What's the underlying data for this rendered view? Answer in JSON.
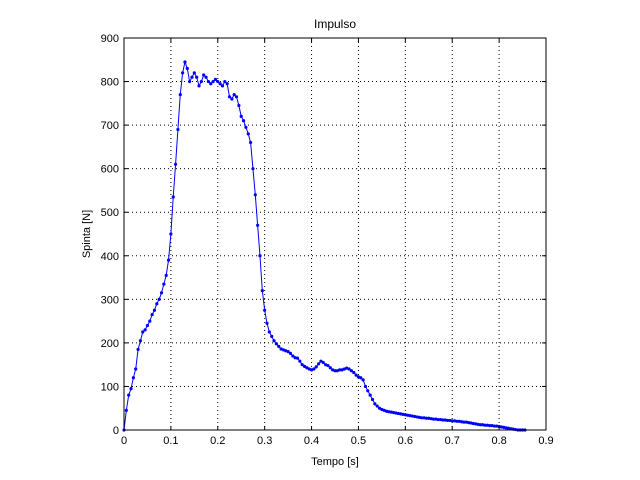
{
  "chart_data": {
    "type": "line",
    "title": "Impulso",
    "xlabel": "Tempo [s]",
    "ylabel": "Spinta [N]",
    "xlim": [
      0,
      0.9
    ],
    "ylim": [
      0,
      900
    ],
    "grid": true,
    "x_ticks": [
      "0",
      "0.1",
      "0.2",
      "0.3",
      "0.4",
      "0.5",
      "0.6",
      "0.7",
      "0.8",
      "0.9"
    ],
    "y_ticks": [
      "0",
      "100",
      "200",
      "300",
      "400",
      "500",
      "600",
      "700",
      "800",
      "900"
    ],
    "series_color": "#0000ff",
    "marker": "dot",
    "series": [
      {
        "x": [
          0,
          0.005,
          0.01,
          0.015,
          0.02,
          0.025,
          0.03,
          0.035,
          0.04,
          0.045,
          0.05,
          0.055,
          0.06,
          0.065,
          0.07,
          0.075,
          0.08,
          0.085,
          0.09,
          0.095,
          0.1,
          0.105,
          0.11,
          0.115,
          0.12,
          0.125,
          0.13,
          0.135,
          0.14,
          0.145,
          0.15,
          0.155,
          0.16,
          0.165,
          0.17,
          0.175,
          0.18,
          0.185,
          0.19,
          0.195,
          0.2,
          0.205,
          0.21,
          0.215,
          0.22,
          0.225,
          0.23,
          0.235,
          0.24,
          0.245,
          0.25,
          0.255,
          0.26,
          0.265,
          0.27,
          0.275,
          0.28,
          0.285,
          0.29,
          0.295,
          0.3,
          0.305,
          0.31,
          0.315,
          0.32,
          0.325,
          0.33,
          0.335,
          0.34,
          0.345,
          0.35,
          0.355,
          0.36,
          0.365,
          0.37,
          0.375,
          0.38,
          0.385,
          0.39,
          0.395,
          0.4,
          0.405,
          0.41,
          0.415,
          0.42,
          0.425,
          0.43,
          0.435,
          0.44,
          0.445,
          0.45,
          0.455,
          0.46,
          0.465,
          0.47,
          0.475,
          0.48,
          0.485,
          0.49,
          0.495,
          0.5,
          0.505,
          0.51,
          0.515,
          0.52,
          0.525,
          0.53,
          0.535,
          0.54,
          0.545,
          0.55,
          0.555,
          0.56,
          0.565,
          0.57,
          0.575,
          0.58,
          0.585,
          0.59,
          0.595,
          0.6,
          0.605,
          0.61,
          0.615,
          0.62,
          0.625,
          0.63,
          0.635,
          0.64,
          0.645,
          0.65,
          0.655,
          0.66,
          0.665,
          0.67,
          0.675,
          0.68,
          0.685,
          0.69,
          0.695,
          0.7,
          0.705,
          0.71,
          0.715,
          0.72,
          0.725,
          0.73,
          0.735,
          0.74,
          0.745,
          0.75,
          0.755,
          0.76,
          0.765,
          0.77,
          0.775,
          0.78,
          0.785,
          0.79,
          0.795,
          0.8,
          0.805,
          0.81,
          0.815,
          0.82,
          0.825,
          0.83,
          0.835,
          0.84,
          0.845,
          0.85,
          0.855
        ],
        "y": [
          0,
          45,
          80,
          95,
          120,
          140,
          185,
          205,
          225,
          230,
          240,
          250,
          265,
          275,
          290,
          300,
          315,
          335,
          355,
          390,
          450,
          535,
          610,
          690,
          770,
          820,
          845,
          830,
          800,
          810,
          820,
          810,
          790,
          800,
          815,
          810,
          800,
          795,
          800,
          805,
          800,
          795,
          790,
          800,
          795,
          765,
          760,
          770,
          765,
          745,
          720,
          710,
          695,
          680,
          660,
          600,
          540,
          470,
          400,
          320,
          275,
          245,
          225,
          215,
          205,
          198,
          192,
          186,
          184,
          182,
          180,
          176,
          170,
          166,
          165,
          158,
          150,
          146,
          143,
          140,
          138,
          140,
          145,
          152,
          158,
          155,
          150,
          148,
          143,
          138,
          136,
          136,
          138,
          138,
          140,
          142,
          140,
          136,
          132,
          126,
          122,
          120,
          115,
          100,
          90,
          80,
          70,
          60,
          55,
          50,
          47,
          45,
          43,
          42,
          41,
          40,
          39,
          38,
          37,
          36,
          35,
          34,
          33,
          32,
          31,
          30,
          29,
          28,
          28,
          27,
          27,
          26,
          25,
          25,
          24,
          24,
          23,
          23,
          22,
          22,
          21,
          21,
          20,
          20,
          19,
          18,
          18,
          17,
          16,
          15,
          14,
          13,
          12,
          12,
          11,
          11,
          10,
          10,
          9,
          9,
          8,
          7,
          6,
          5,
          4,
          3,
          2,
          1,
          0,
          0,
          0,
          0
        ]
      }
    ]
  }
}
